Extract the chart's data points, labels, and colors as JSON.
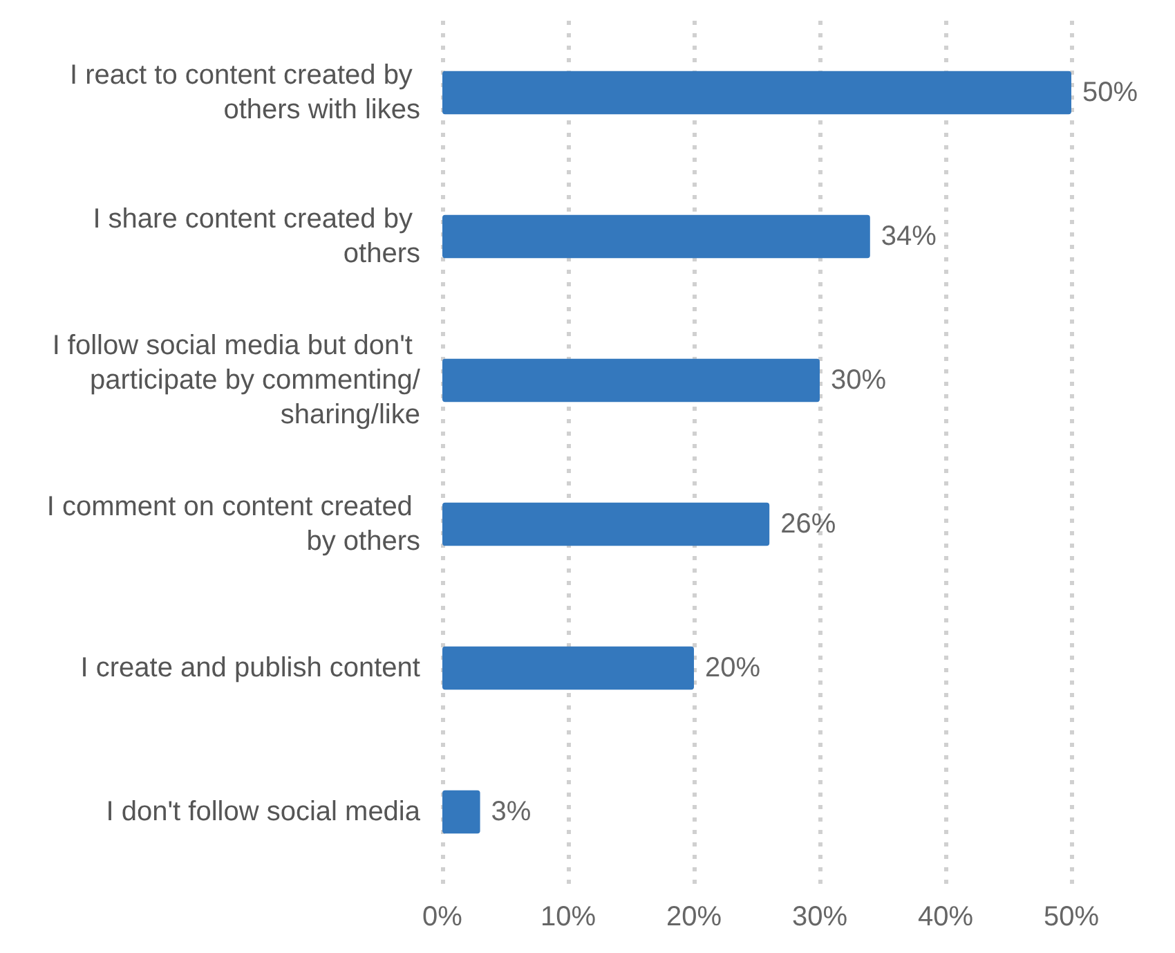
{
  "chart_data": {
    "type": "bar",
    "orientation": "horizontal",
    "categories": [
      "I react to content created by others with likes",
      "I share content created by others",
      "I follow social media but don't participate by commenting/sharing/like",
      "I comment on content created by others",
      "I create and publish content",
      "I don't follow social media"
    ],
    "values": [
      50,
      34,
      30,
      26,
      20,
      3
    ],
    "value_labels": [
      "50%",
      "34%",
      "30%",
      "26%",
      "20%",
      "3%"
    ],
    "color": "#3478bd",
    "xlim": [
      0,
      50
    ],
    "xticks": [
      {
        "value": 0,
        "label": "0%"
      },
      {
        "value": 10,
        "label": "10%"
      },
      {
        "value": 20,
        "label": "20%"
      },
      {
        "value": 30,
        "label": "30%"
      },
      {
        "value": 40,
        "label": "40%"
      },
      {
        "value": 50,
        "label": "50%"
      }
    ],
    "grid": "x"
  }
}
